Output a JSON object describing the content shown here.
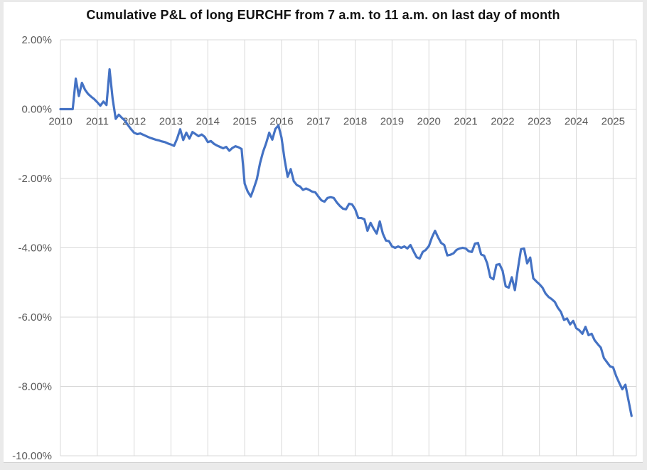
{
  "window": {
    "frame_color": "#eaeaea",
    "background": "#ffffff"
  },
  "chart_data": {
    "type": "line",
    "title": "Cumulative P&L of long EURCHF from 7 a.m. to 11 a.m. on last day of month",
    "grid": true,
    "legend": "none",
    "gridline_color": "#d9d9d9",
    "tick_label_color": "#595959",
    "y_axis_range_pct": [
      -10,
      2
    ],
    "x_axis_range_years": [
      2010,
      2025.63
    ],
    "y_tick_labels": [
      "2.00%",
      "0.00%",
      "-2.00%",
      "-4.00%",
      "-6.00%",
      "-8.00%",
      "-10.00%"
    ],
    "y_tick_values_pct": [
      2,
      0,
      -2,
      -4,
      -6,
      -8,
      -10
    ],
    "x_tick_labels": [
      "2010",
      "2011",
      "2012",
      "2013",
      "2014",
      "2015",
      "2016",
      "2017",
      "2018",
      "2019",
      "2020",
      "2021",
      "2022",
      "2023",
      "2024",
      "2025"
    ],
    "x_tick_years": [
      2010,
      2011,
      2012,
      2013,
      2014,
      2015,
      2016,
      2017,
      2018,
      2019,
      2020,
      2021,
      2022,
      2023,
      2024,
      2025
    ],
    "series": [
      {
        "name": "Cumulative P&L",
        "color": "#4472c4",
        "frequency": "monthly",
        "start_year": 2010,
        "start_month": 1,
        "unit": "percent",
        "values_pct": [
          0.0,
          0.0,
          0.0,
          0.0,
          0.0,
          0.88,
          0.38,
          0.76,
          0.56,
          0.44,
          0.36,
          0.29,
          0.2,
          0.1,
          0.22,
          0.12,
          1.15,
          0.3,
          -0.28,
          -0.16,
          -0.25,
          -0.33,
          -0.46,
          -0.58,
          -0.68,
          -0.72,
          -0.7,
          -0.74,
          -0.78,
          -0.82,
          -0.85,
          -0.88,
          -0.9,
          -0.93,
          -0.95,
          -0.99,
          -1.02,
          -1.06,
          -0.85,
          -0.58,
          -0.89,
          -0.68,
          -0.85,
          -0.66,
          -0.72,
          -0.78,
          -0.73,
          -0.8,
          -0.95,
          -0.92,
          -1.0,
          -1.05,
          -1.09,
          -1.13,
          -1.09,
          -1.2,
          -1.12,
          -1.07,
          -1.1,
          -1.15,
          -2.15,
          -2.38,
          -2.52,
          -2.28,
          -2.01,
          -1.56,
          -1.23,
          -0.98,
          -0.68,
          -0.88,
          -0.57,
          -0.47,
          -0.82,
          -1.45,
          -1.95,
          -1.73,
          -2.08,
          -2.19,
          -2.23,
          -2.33,
          -2.29,
          -2.33,
          -2.38,
          -2.4,
          -2.52,
          -2.63,
          -2.67,
          -2.56,
          -2.54,
          -2.56,
          -2.69,
          -2.79,
          -2.87,
          -2.89,
          -2.73,
          -2.75,
          -2.89,
          -3.14,
          -3.14,
          -3.18,
          -3.51,
          -3.28,
          -3.45,
          -3.59,
          -3.24,
          -3.59,
          -3.79,
          -3.81,
          -3.96,
          -4.0,
          -3.96,
          -4.0,
          -3.96,
          -4.02,
          -3.92,
          -4.1,
          -4.27,
          -4.31,
          -4.12,
          -4.06,
          -3.95,
          -3.7,
          -3.51,
          -3.7,
          -3.86,
          -3.92,
          -4.22,
          -4.2,
          -4.16,
          -4.06,
          -4.02,
          -4.0,
          -4.02,
          -4.1,
          -4.12,
          -3.88,
          -3.86,
          -4.19,
          -4.23,
          -4.45,
          -4.85,
          -4.91,
          -4.49,
          -4.47,
          -4.66,
          -5.11,
          -5.15,
          -4.85,
          -5.22,
          -4.6,
          -4.04,
          -4.02,
          -4.45,
          -4.28,
          -4.88,
          -4.97,
          -5.05,
          -5.15,
          -5.32,
          -5.42,
          -5.48,
          -5.56,
          -5.73,
          -5.85,
          -6.08,
          -6.04,
          -6.21,
          -6.11,
          -6.32,
          -6.38,
          -6.48,
          -6.28,
          -6.52,
          -6.48,
          -6.67,
          -6.78,
          -6.88,
          -7.18,
          -7.3,
          -7.42,
          -7.45,
          -7.7,
          -7.9,
          -8.08,
          -7.95,
          -8.4,
          -8.85
        ]
      }
    ]
  }
}
